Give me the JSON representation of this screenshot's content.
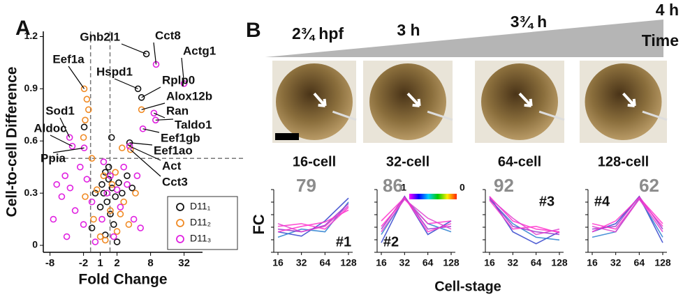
{
  "panel_labels": [
    "A",
    "B"
  ],
  "panel_b": {
    "timeline": [
      "2¾ hpf",
      "3 h",
      "3¾ h",
      "4 h"
    ],
    "time_label": "Time",
    "stages": [
      "16-cell",
      "32-cell",
      "64-cell",
      "128-cell"
    ],
    "y_label": "FC",
    "x_label": "Cell-stage"
  },
  "chart_data": [
    {
      "type": "scatter",
      "x_label": "Fold Change",
      "y_label": "Cell-to-cell Difference",
      "xlim": [
        -3.4,
        6.1
      ],
      "ylim": [
        -0.04,
        1.23
      ],
      "xticks": [
        {
          "value": -3,
          "label": "-8"
        },
        {
          "value": -1,
          "label": "-2"
        },
        {
          "value": 0,
          "label": "1"
        },
        {
          "value": 1,
          "label": "2"
        },
        {
          "value": 3,
          "label": "8"
        },
        {
          "value": 5,
          "label": "32"
        }
      ],
      "yticks": [
        0,
        0.3,
        0.6,
        0.9,
        1.2
      ],
      "x_thresholds": [
        -0.58,
        0.58
      ],
      "y_threshold": 0.5,
      "legend": "lower right",
      "series": [
        {
          "name": "D11₁",
          "color": "#111111",
          "x": [
            2.75,
            2.25,
            2.46,
            1.75,
            -0.96,
            0.67,
            0.3,
            0.5,
            0.1,
            0.7,
            0.2,
            0.9,
            0.4,
            1.1,
            1.6,
            0.0,
            0.6,
            1.3,
            0.8,
            0.3,
            1.0,
            -0.3,
            1.9,
            0.5,
            -0.5
          ],
          "values": [
            1.1,
            0.9,
            0.85,
            0.59,
            0.68,
            0.62,
            0.42,
            0.38,
            0.35,
            0.33,
            0.3,
            0.28,
            0.25,
            0.36,
            0.4,
            0.22,
            0.18,
            0.3,
            0.12,
            0.06,
            0.02,
            0.3,
            0.33,
            0.45,
            0.1
          ]
        },
        {
          "name": "D11₂",
          "color": "#f08a24",
          "x": [
            -0.96,
            2.46,
            1.8,
            -0.8,
            -0.7,
            -0.9,
            -1.0,
            -0.5,
            1.3,
            0.2,
            0.9,
            -0.2,
            1.4,
            0.6,
            -0.4,
            1.0,
            0.3,
            1.7,
            -0.9,
            2.1,
            0.0,
            1.2,
            0.7
          ],
          "values": [
            0.9,
            0.78,
            0.55,
            0.84,
            0.78,
            0.72,
            0.62,
            0.5,
            0.56,
            0.4,
            0.42,
            0.32,
            0.25,
            0.2,
            0.15,
            0.08,
            0.03,
            0.12,
            0.28,
            0.3,
            0.05,
            0.18,
            0.35
          ]
        },
        {
          "name": "D11₃",
          "color": "#e020e0",
          "x": [
            3.33,
            5.0,
            3.2,
            3.3,
            2.54,
            1.75,
            -1.83,
            -1.67,
            -0.96,
            -2.1,
            -1.8,
            -2.6,
            -2.3,
            -2.8,
            -1.5,
            -1.2,
            -0.8,
            -0.5,
            0.1,
            0.4,
            0.8,
            1.2,
            1.6,
            2.0,
            2.4,
            0.6,
            -0.3,
            1.0,
            0.2,
            -1.0,
            1.4,
            2.2,
            -2.0
          ],
          "values": [
            1.04,
            0.93,
            0.76,
            0.72,
            0.67,
            0.57,
            0.62,
            0.57,
            0.56,
            0.4,
            0.33,
            0.35,
            0.28,
            0.15,
            0.2,
            0.45,
            0.38,
            0.25,
            0.15,
            0.3,
            0.05,
            0.22,
            0.35,
            0.15,
            0.1,
            0.4,
            0.02,
            0.32,
            0.48,
            0.12,
            0.45,
            0.4,
            0.05
          ]
        }
      ],
      "annotations": [
        "Gnb2l1",
        "Cct8",
        "Actg1",
        "Eef1a",
        "Hspd1",
        "Rplp0",
        "Alox12b",
        "Ran",
        "Taldo1",
        "Eef1gb",
        "Eef1ao",
        "Act",
        "Cct3",
        "Sod1",
        "Aldoc",
        "Ppia"
      ]
    },
    {
      "type": "line",
      "count": 79,
      "cluster": "#1",
      "x": [
        16,
        32,
        64,
        128
      ],
      "xticks": [
        16,
        32,
        64,
        128
      ],
      "xscale": "log",
      "ylim": [
        0,
        1
      ],
      "series": [
        {
          "color": "#3344cc",
          "values": [
            0.3,
            0.22,
            0.5,
            0.92
          ]
        },
        {
          "color": "#2a7fd0",
          "values": [
            0.2,
            0.35,
            0.3,
            0.85
          ]
        },
        {
          "color": "#9933cc",
          "values": [
            0.35,
            0.3,
            0.42,
            0.82
          ]
        },
        {
          "color": "#ff33cc",
          "values": [
            0.4,
            0.45,
            0.35,
            0.75
          ]
        },
        {
          "color": "#ff33cc",
          "values": [
            0.3,
            0.4,
            0.48,
            0.7
          ]
        },
        {
          "color": "#e040d0",
          "values": [
            0.45,
            0.3,
            0.4,
            0.78
          ]
        }
      ]
    },
    {
      "type": "line",
      "count": 86,
      "cluster": "#2",
      "x": [
        16,
        32,
        64,
        128
      ],
      "xticks": [
        16,
        32,
        64,
        128
      ],
      "xscale": "log",
      "ylim": [
        0,
        1
      ],
      "colorbar": {
        "max": 1,
        "min": 0
      },
      "series": [
        {
          "color": "#3344cc",
          "values": [
            0.1,
            0.95,
            0.25,
            0.5
          ]
        },
        {
          "color": "#2a7fd0",
          "values": [
            0.25,
            0.92,
            0.45,
            0.3
          ]
        },
        {
          "color": "#9933cc",
          "values": [
            0.35,
            0.95,
            0.35,
            0.4
          ]
        },
        {
          "color": "#ff33cc",
          "values": [
            0.4,
            0.9,
            0.45,
            0.5
          ]
        },
        {
          "color": "#ff33cc",
          "values": [
            0.5,
            0.93,
            0.3,
            0.45
          ]
        },
        {
          "color": "#e040d0",
          "values": [
            0.3,
            0.9,
            0.55,
            0.35
          ]
        }
      ]
    },
    {
      "type": "line",
      "count": 92,
      "cluster": "#3",
      "x": [
        16,
        32,
        64,
        128
      ],
      "xticks": [
        16,
        32,
        64,
        128
      ],
      "xscale": "log",
      "ylim": [
        0,
        1
      ],
      "series": [
        {
          "color": "#3344cc",
          "values": [
            0.95,
            0.3,
            0.08,
            0.3
          ]
        },
        {
          "color": "#2a7fd0",
          "values": [
            0.9,
            0.45,
            0.2,
            0.15
          ]
        },
        {
          "color": "#9933cc",
          "values": [
            0.92,
            0.4,
            0.3,
            0.25
          ]
        },
        {
          "color": "#ff33cc",
          "values": [
            0.95,
            0.5,
            0.35,
            0.3
          ]
        },
        {
          "color": "#ff33cc",
          "values": [
            0.88,
            0.35,
            0.4,
            0.28
          ]
        },
        {
          "color": "#e040d0",
          "values": [
            0.92,
            0.55,
            0.25,
            0.35
          ]
        }
      ]
    },
    {
      "type": "line",
      "count": 62,
      "cluster": "#4",
      "x": [
        16,
        32,
        64,
        128
      ],
      "xticks": [
        16,
        32,
        64,
        128
      ],
      "xscale": "log",
      "ylim": [
        0,
        1
      ],
      "series": [
        {
          "color": "#3344cc",
          "values": [
            0.3,
            0.45,
            0.95,
            0.1
          ]
        },
        {
          "color": "#2a7fd0",
          "values": [
            0.2,
            0.3,
            0.92,
            0.2
          ]
        },
        {
          "color": "#9933cc",
          "values": [
            0.35,
            0.4,
            0.95,
            0.35
          ]
        },
        {
          "color": "#ff33cc",
          "values": [
            0.45,
            0.35,
            0.9,
            0.4
          ]
        },
        {
          "color": "#ff33cc",
          "values": [
            0.3,
            0.5,
            0.93,
            0.45
          ]
        },
        {
          "color": "#e040d0",
          "values": [
            0.4,
            0.3,
            0.9,
            0.3
          ]
        }
      ]
    }
  ]
}
